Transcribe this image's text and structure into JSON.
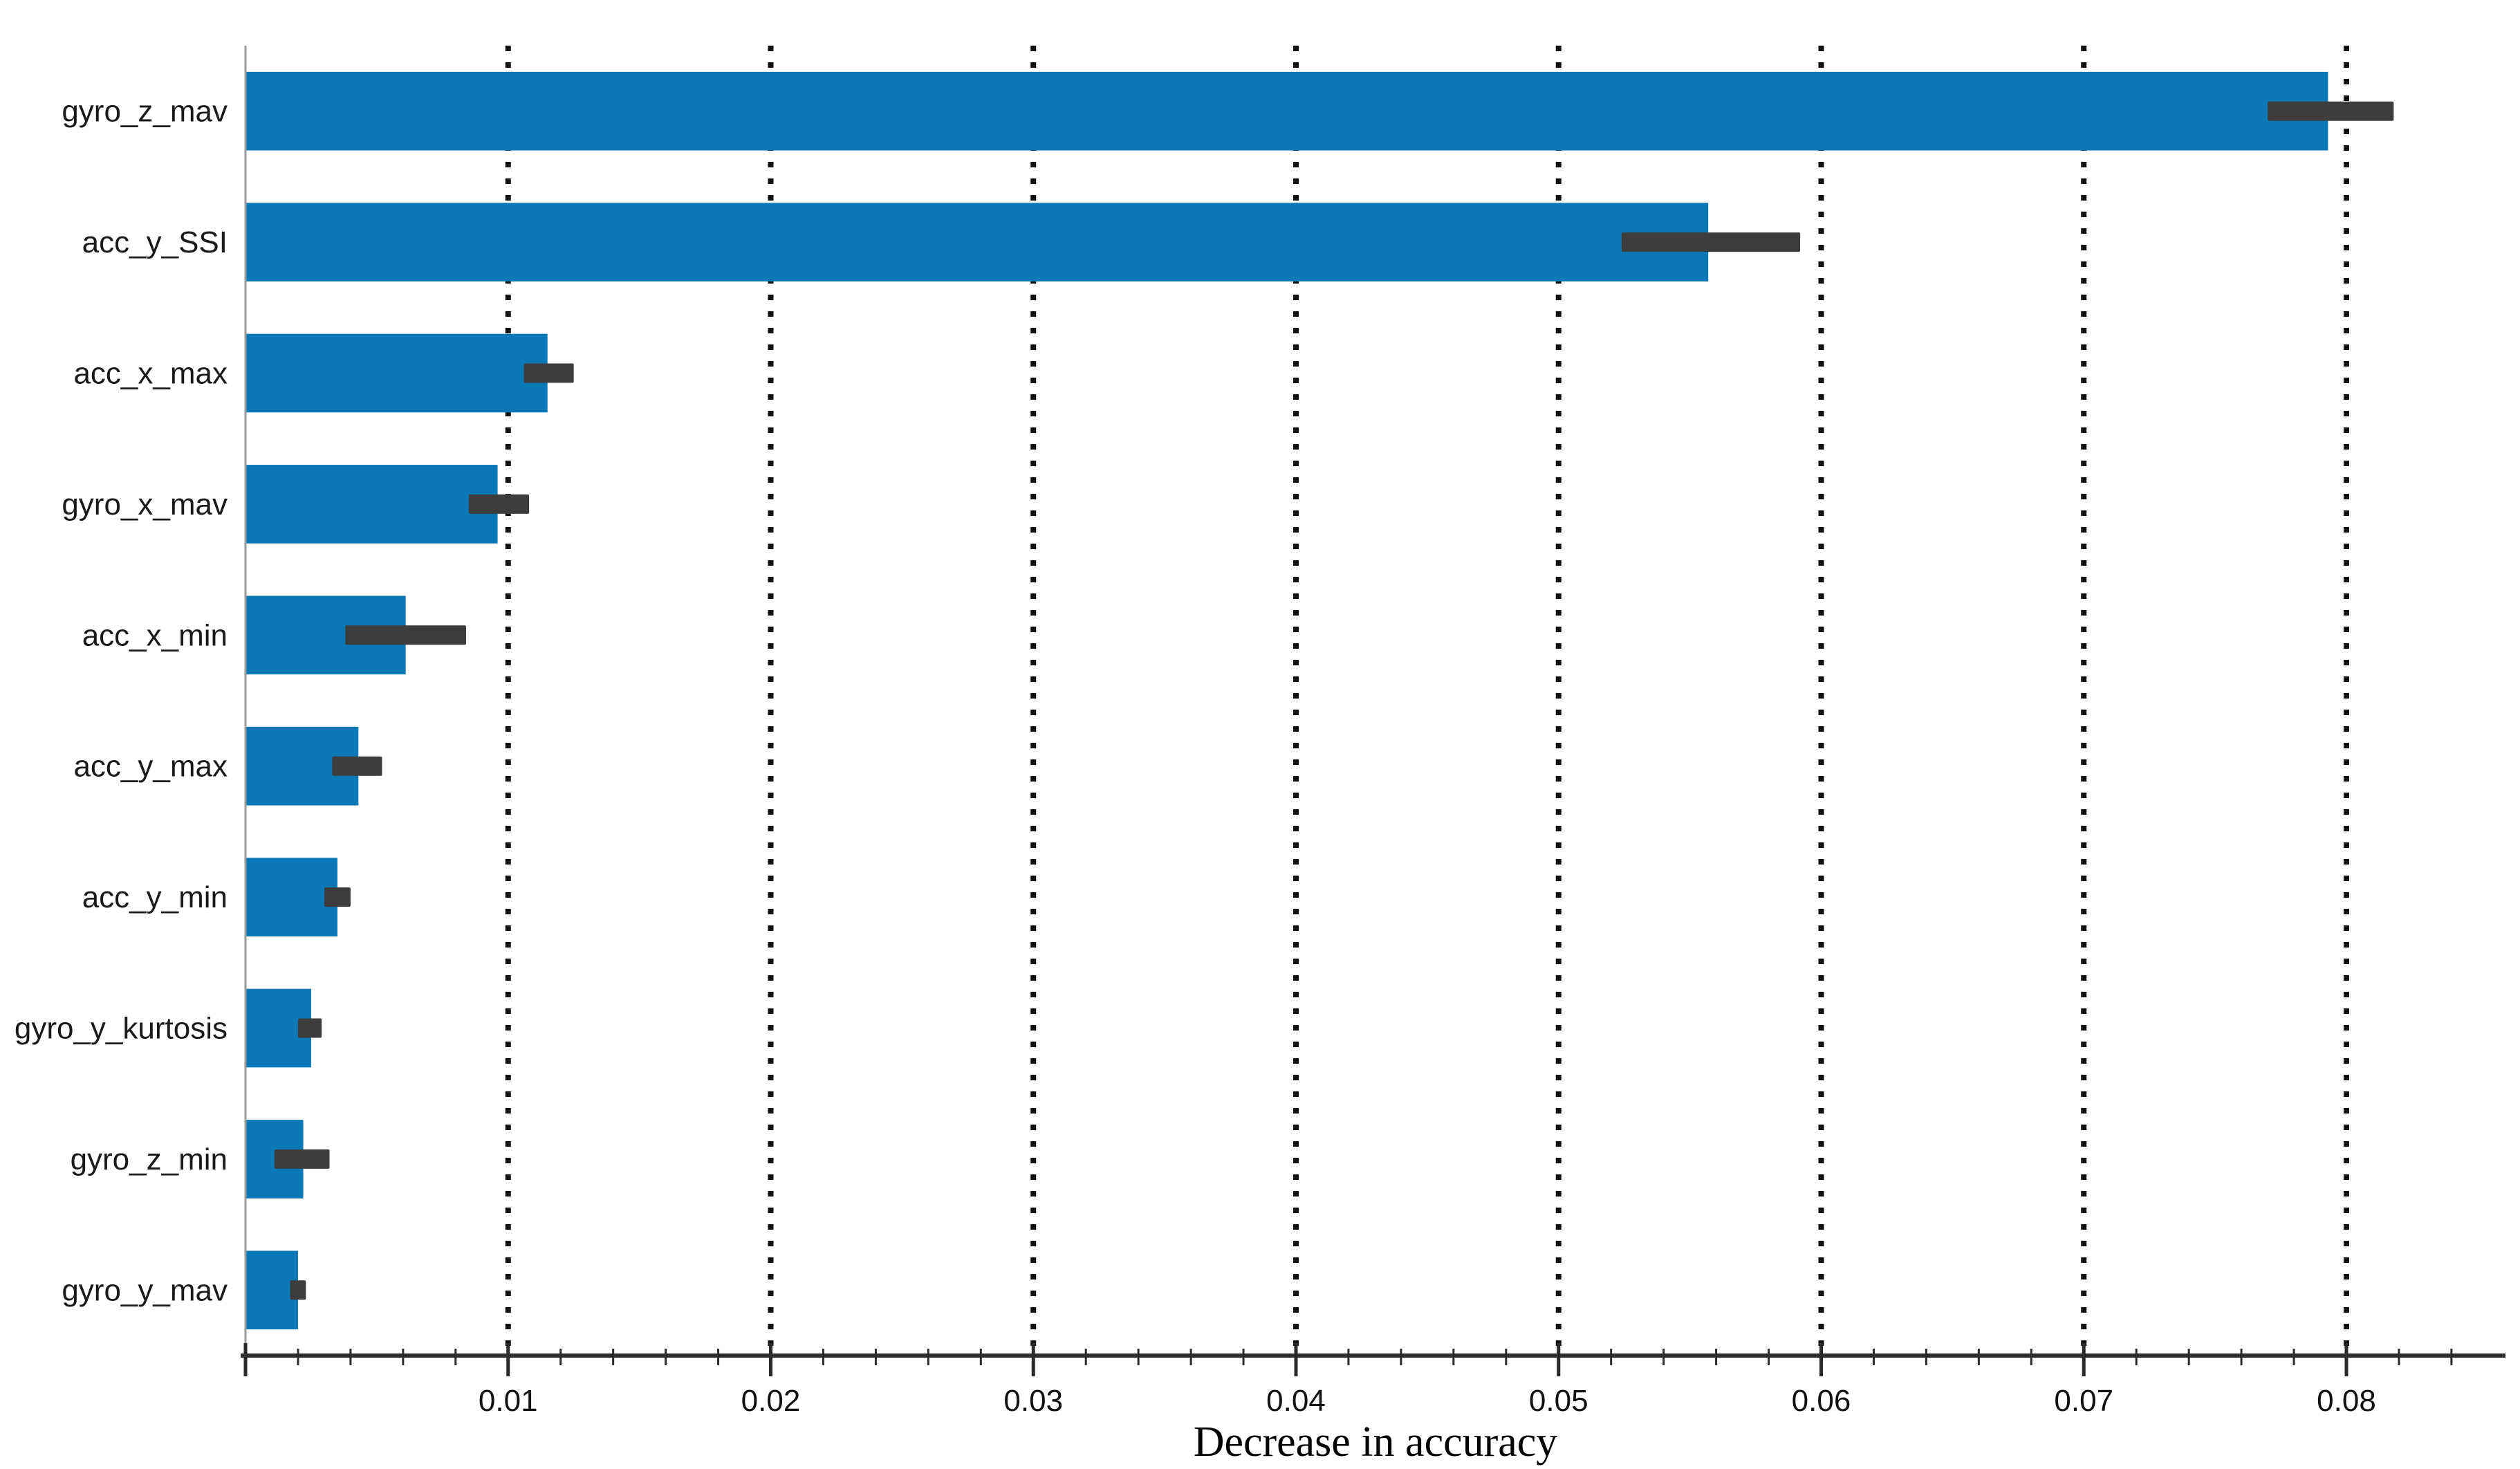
{
  "chart_data": {
    "type": "bar",
    "orientation": "horizontal",
    "title": "",
    "xlabel": "Decrease in accuracy",
    "ylabel": "",
    "categories": [
      "gyro_z_mav",
      "acc_y_SSI",
      "acc_x_max",
      "gyro_x_mav",
      "acc_x_min",
      "acc_y_max",
      "acc_y_min",
      "gyro_y_kurtosis",
      "gyro_z_min",
      "gyro_y_mav"
    ],
    "values": [
      0.0793,
      0.0557,
      0.0115,
      0.0096,
      0.0061,
      0.0043,
      0.0035,
      0.0025,
      0.0022,
      0.002
    ],
    "error_low": [
      0.077,
      0.0524,
      0.0106,
      0.0085,
      0.0038,
      0.0033,
      0.003,
      0.002,
      0.0011,
      0.0017
    ],
    "error_high": [
      0.0818,
      0.0592,
      0.0125,
      0.0108,
      0.0084,
      0.0052,
      0.004,
      0.0029,
      0.0032,
      0.0023
    ],
    "xlim": [
      0,
      0.086
    ],
    "x_ticks": [
      0.01,
      0.02,
      0.03,
      0.04,
      0.05,
      0.06,
      0.07,
      0.08
    ],
    "x_tick_labels": [
      "0.01",
      "0.02",
      "0.03",
      "0.04",
      "0.05",
      "0.06",
      "0.07",
      "0.08"
    ],
    "x_minor_tick_step": 0.002,
    "grid": "vertical dotted lines at major ticks",
    "legend": "none",
    "bar_color": "#0b78b7",
    "error_bar_color": "#3d3d3d",
    "axis_line_color": "#2b2b2b",
    "spine_color": "#9a9a9a",
    "grid_color": "#111111"
  }
}
